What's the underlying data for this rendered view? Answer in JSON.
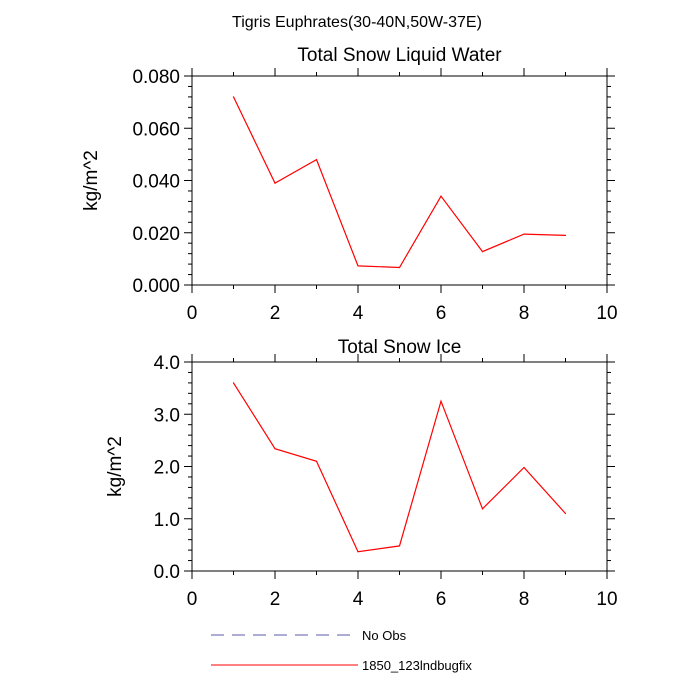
{
  "figure": {
    "title": "Tigris Euphrates(30-40N,50W-37E)"
  },
  "chart_data": [
    {
      "type": "line",
      "title": "Total Snow Liquid Water",
      "xlabel": "",
      "ylabel": "kg/m^2",
      "xlim": [
        0,
        10
      ],
      "ylim": [
        0,
        0.08
      ],
      "xticks": [
        "0",
        "2",
        "4",
        "6",
        "8",
        "10"
      ],
      "yticks": [
        "0.000",
        "0.020",
        "0.040",
        "0.060",
        "0.080"
      ],
      "grid": false,
      "x": [
        1,
        2,
        3,
        4,
        5,
        6,
        7,
        8,
        9
      ],
      "series": [
        {
          "name": "1850_123lndbugfix",
          "color": "#ff0000",
          "values": [
            0.072,
            0.039,
            0.048,
            0.0073,
            0.0067,
            0.034,
            0.0128,
            0.0195,
            0.019
          ]
        }
      ]
    },
    {
      "type": "line",
      "title": "Total Snow Ice",
      "xlabel": "",
      "ylabel": "kg/m^2",
      "xlim": [
        0,
        10
      ],
      "ylim": [
        0,
        4.0
      ],
      "xticks": [
        "0",
        "2",
        "4",
        "6",
        "8",
        "10"
      ],
      "yticks": [
        "0.0",
        "1.0",
        "2.0",
        "3.0",
        "4.0"
      ],
      "grid": false,
      "x": [
        1,
        2,
        3,
        4,
        5,
        6,
        7,
        8,
        9
      ],
      "series": [
        {
          "name": "1850_123lndbugfix",
          "color": "#ff0000",
          "values": [
            3.6,
            2.34,
            2.1,
            0.37,
            0.48,
            3.25,
            1.19,
            1.98,
            1.1
          ]
        }
      ]
    }
  ],
  "legend": {
    "placement": "bottom",
    "entries": [
      {
        "label": "No Obs",
        "color": "#5a5aa8",
        "style": "dashed"
      },
      {
        "label": "1850_123lndbugfix",
        "color": "#ff0000",
        "style": "solid"
      }
    ]
  }
}
